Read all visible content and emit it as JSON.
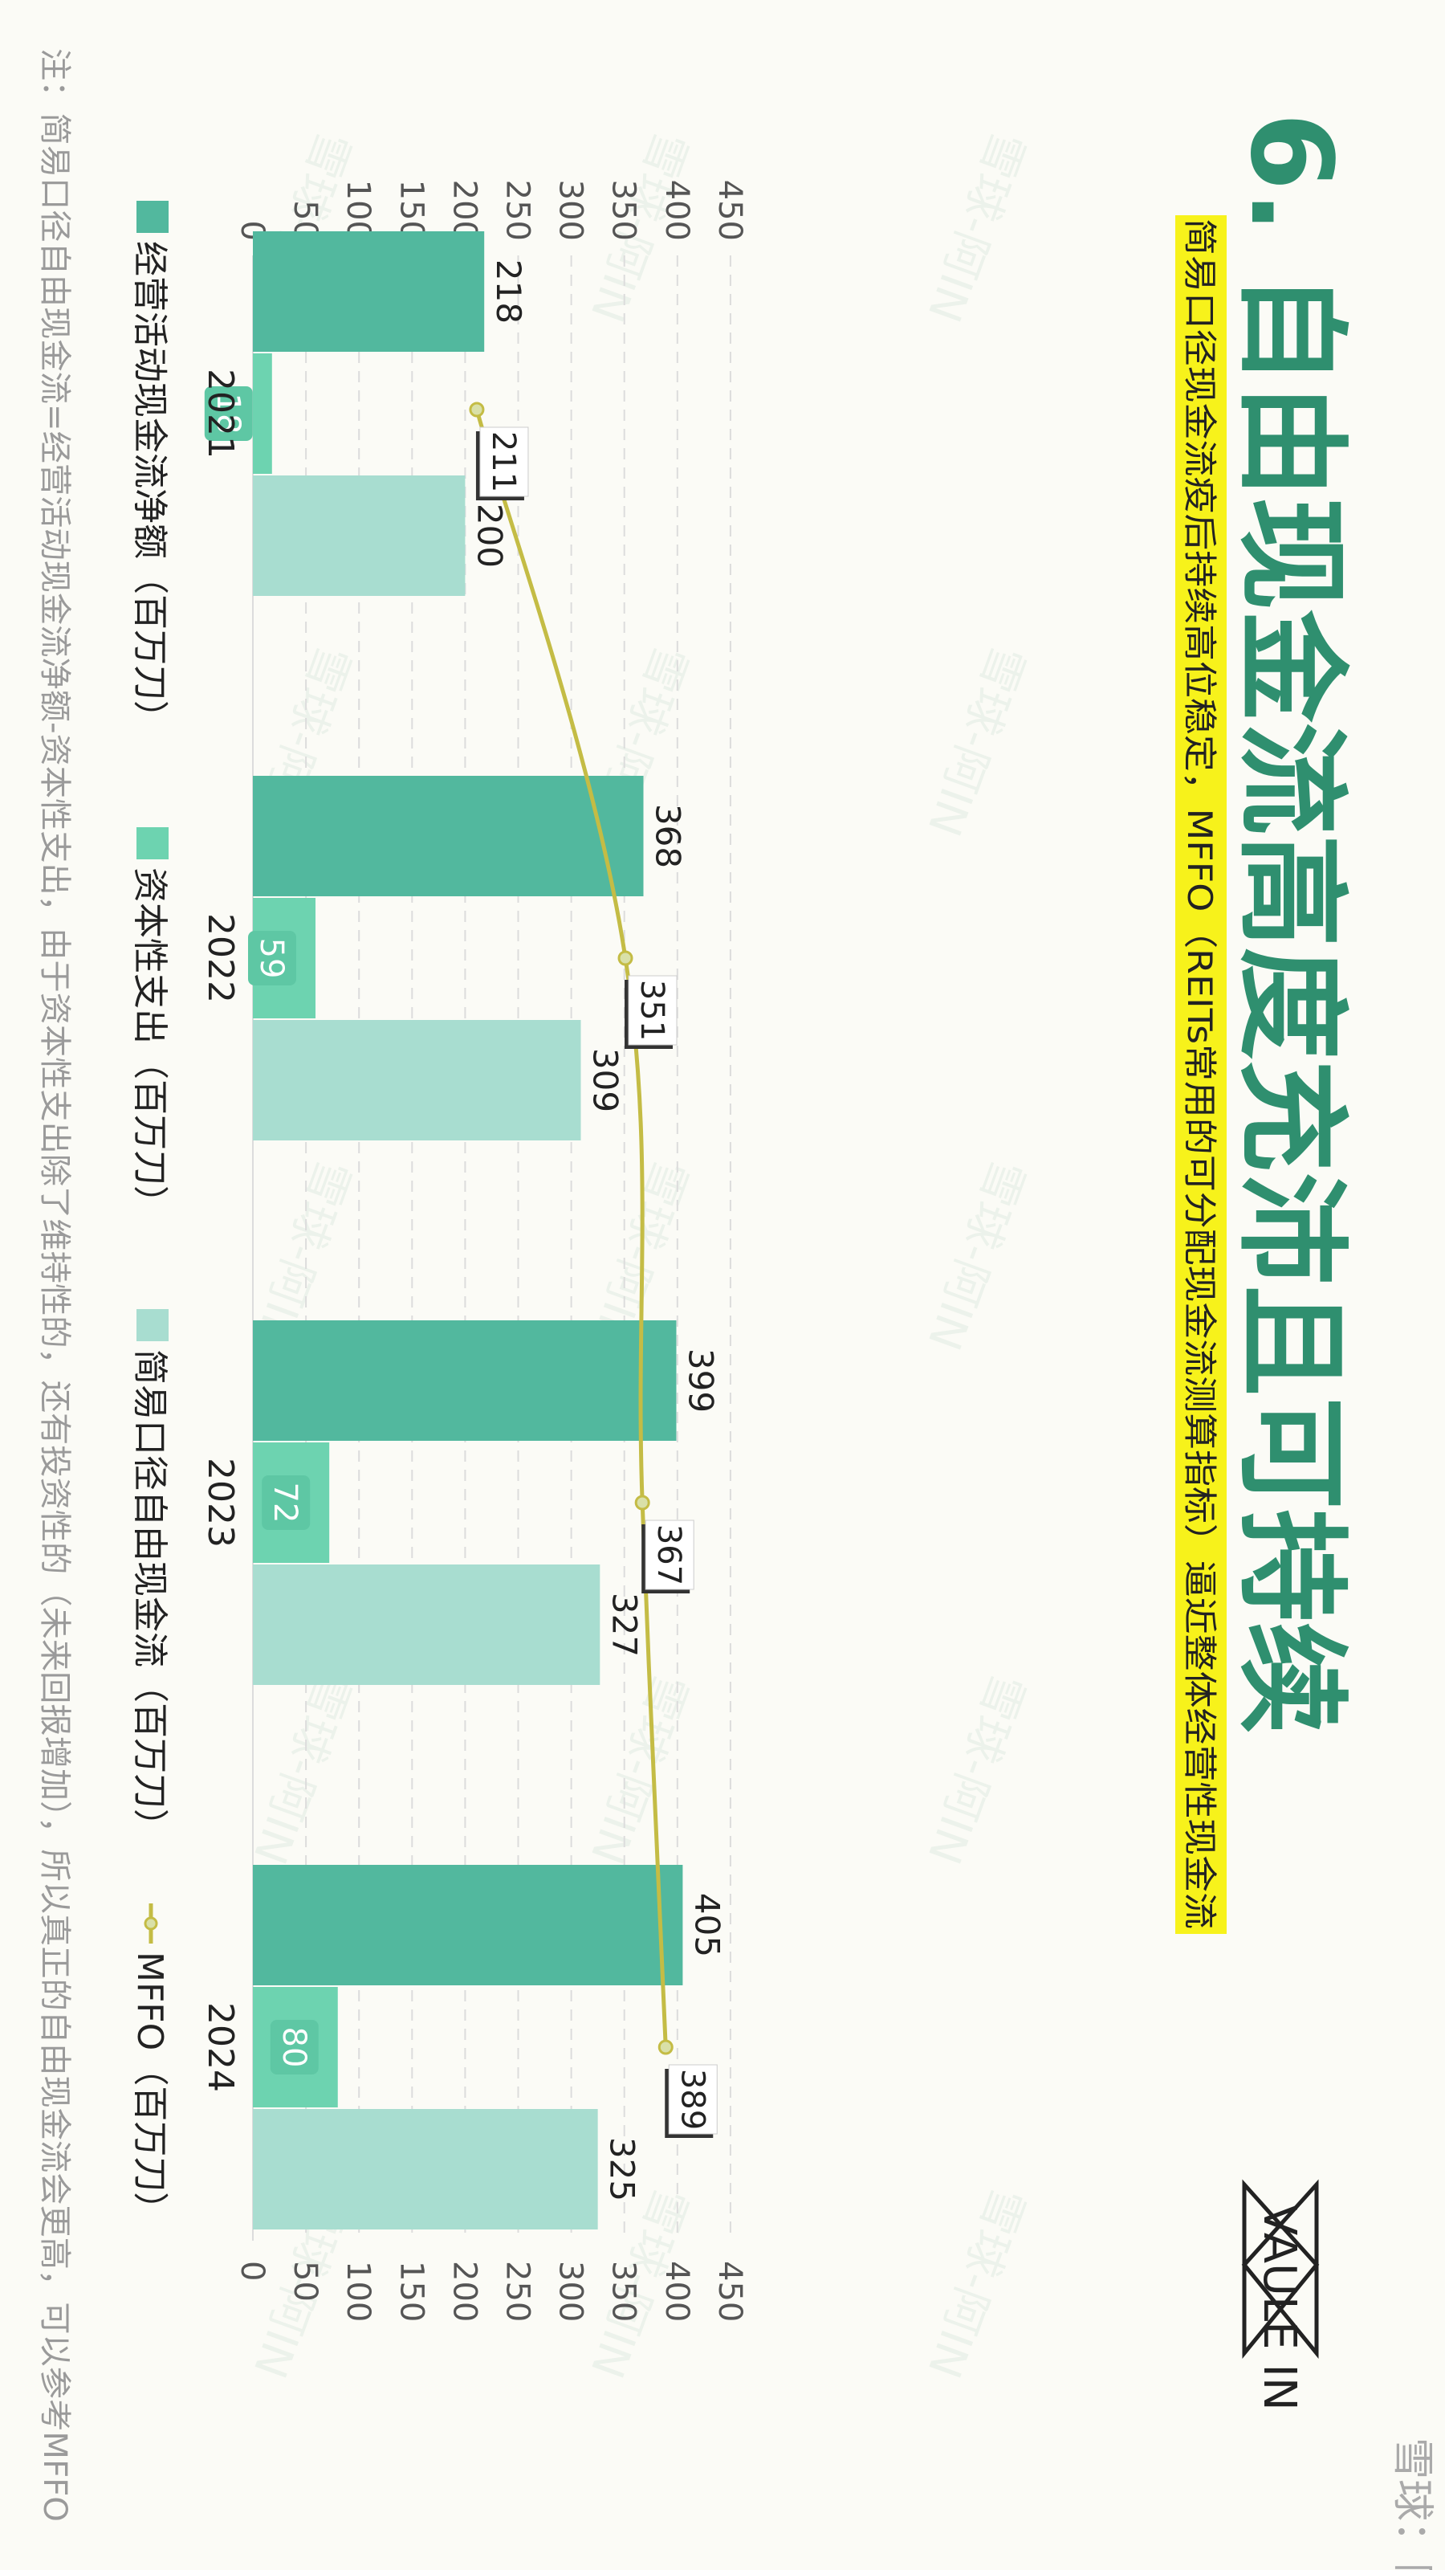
{
  "page": {
    "title": "6. 自由现金流高度充沛且可持续",
    "subtitle": "简易口径现金流疫后持续高位稳定，MFFO（REITs常用的可分配现金流测算指标）逼近整体经营性现金流",
    "note": "注：简易口径自由现金流=经营活动现金流净额-资本性支出，由于资本性支出除了维持性的，还有投资性的（未来回报增加），所以真正的自由现金流会更高，可以参考MFFO",
    "logo_text": "VAULE IN",
    "watermark": "雪球：阿IN",
    "bg_watermark": "雪球-阿IN"
  },
  "colors": {
    "background": "#fbfbf6",
    "title": "#2f8f6f",
    "highlight": "#f7f21b",
    "bar_operating": "#52b89e",
    "bar_capex": "#6dd3b0",
    "bar_fcf": "#a8ddd0",
    "line_mffo": "#c4bc45",
    "grid": "#dcdcdc",
    "axis_text": "#555555",
    "note_text": "#9a9a9a"
  },
  "chart_data": {
    "type": "bar",
    "orientation": "vertical",
    "categories": [
      "2021",
      "2022",
      "2023",
      "2024"
    ],
    "series": [
      {
        "name": "经营活动现金流净额（百万刀）",
        "type": "bar",
        "values": [
          218,
          368,
          399,
          405
        ]
      },
      {
        "name": "资本性支出（百万刀）",
        "type": "bar",
        "values": [
          18,
          59,
          72,
          80
        ]
      },
      {
        "name": "简易口径自由现金流（百万刀）",
        "type": "bar",
        "values": [
          200,
          309,
          327,
          325
        ]
      },
      {
        "name": "MFFO（百万刀）",
        "type": "line",
        "values": [
          211,
          351,
          367,
          389
        ]
      }
    ],
    "yticks": [
      0,
      50,
      100,
      150,
      200,
      250,
      300,
      350,
      400,
      450
    ],
    "ylim": [
      0,
      450
    ],
    "grid": true,
    "legend_position": "bottom"
  }
}
